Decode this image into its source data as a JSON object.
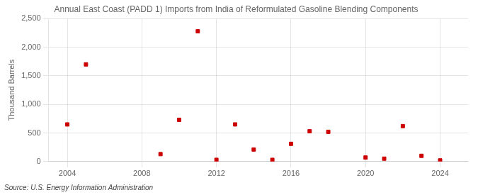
{
  "chart_data": {
    "type": "scatter",
    "title": "Annual East Coast (PADD 1) Imports from India of Reformulated Gasoline Blending Components",
    "y_label": "Thousand Barrels",
    "annotations": [
      "Source: U.S. Energy Information Administration"
    ],
    "x": [
      2004,
      2005,
      2009,
      2010,
      2011,
      2012,
      2013,
      2014,
      2015,
      2016,
      2017,
      2018,
      2020,
      2021,
      2022,
      2023,
      2024
    ],
    "values": [
      650,
      1700,
      130,
      730,
      2280,
      30,
      650,
      210,
      30,
      310,
      530,
      520,
      70,
      50,
      620,
      100,
      20
    ],
    "color": "#cc0000",
    "marker": "square",
    "xlim": [
      2003.0,
      2025.5
    ],
    "xticks": [
      2004,
      2008,
      2012,
      2016,
      2020,
      2024
    ],
    "ylim": [
      0,
      2500
    ],
    "yticks": [
      0,
      500,
      {
        "value": 1000,
        "label": "1,000"
      },
      {
        "value": 1500,
        "label": "1,500"
      },
      {
        "value": 2000,
        "label": "2,000"
      },
      {
        "value": 2500,
        "label": "2,500"
      }
    ],
    "grid": true
  }
}
